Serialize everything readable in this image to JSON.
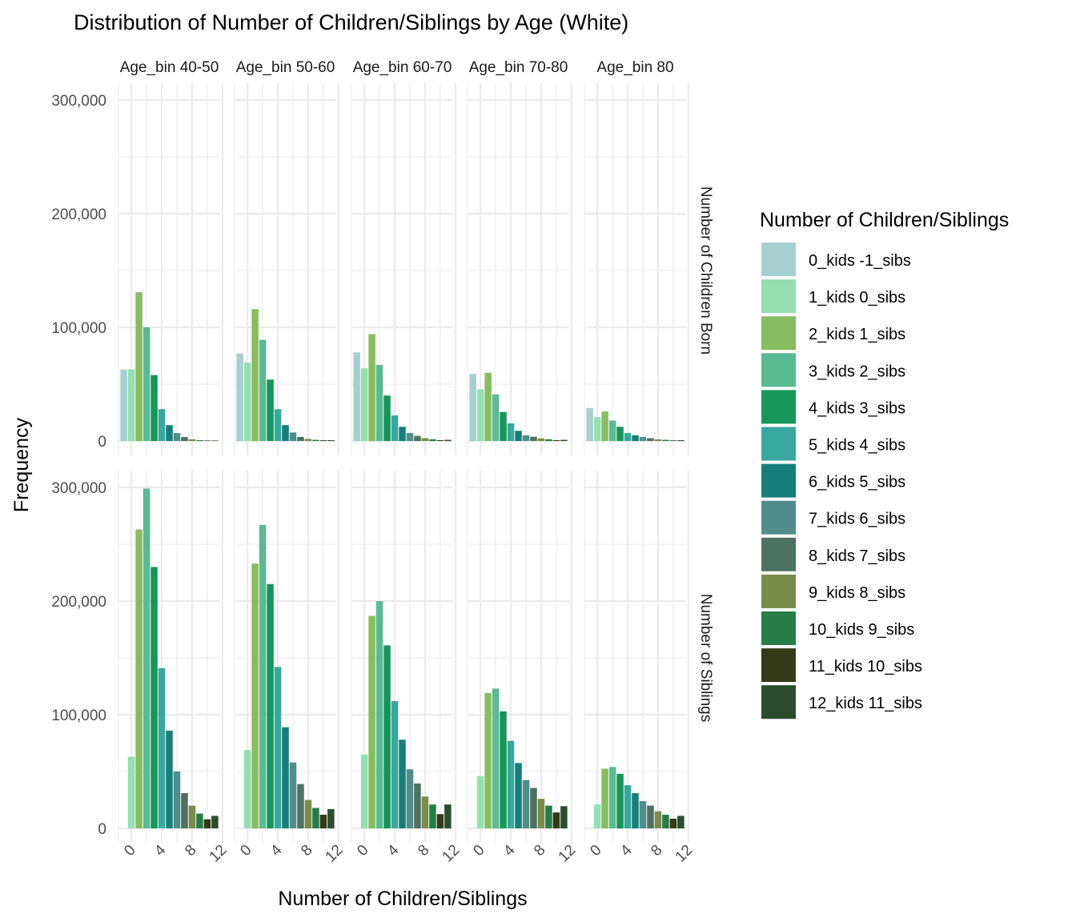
{
  "chart_data": {
    "type": "bar",
    "title": "Distribution of Number of Children/Siblings by Age (White)",
    "xlabel": "Number of Children/Siblings",
    "ylabel": "Frequency",
    "ylim": [
      0,
      300000
    ],
    "yticks": [
      0,
      100000,
      200000,
      300000
    ],
    "ytick_labels": [
      "0",
      "100,000",
      "200,000",
      "300,000"
    ],
    "xlim": [
      -1,
      12
    ],
    "xticks": [
      0,
      4,
      8,
      12
    ],
    "xtick_labels": [
      "0",
      "4",
      "8",
      "12"
    ],
    "grid": true,
    "legend_position": "right",
    "facet_columns": [
      "Age_bin 40-50",
      "Age_bin 50-60",
      "Age_bin 60-70",
      "Age_bin 70-80",
      "Age_bin 80"
    ],
    "facet_column_strip_labels": [
      "‹ge_bin 40-5›",
      "‹ge_bin 50-6›",
      "‹ge_bin 60-7›",
      "‹ge_bin 70-8›",
      "Age_bin 80"
    ],
    "facet_rows": [
      "Number of Children Born",
      "Number of Siblings"
    ],
    "legend": {
      "title": "Number of Children/Siblings",
      "entries": [
        {
          "label": "0_kids -1_sibs",
          "color": "#a6d0cf"
        },
        {
          "label": "1_kids 0_sibs",
          "color": "#93dfb0"
        },
        {
          "label": "2_kids 1_sibs",
          "color": "#87bd60"
        },
        {
          "label": "3_kids 2_sibs",
          "color": "#59ba94"
        },
        {
          "label": "4_kids 3_sibs",
          "color": "#169659"
        },
        {
          "label": "5_kids 4_sibs",
          "color": "#38a89e"
        },
        {
          "label": "6_kids 5_sibs",
          "color": "#177f7b"
        },
        {
          "label": "7_kids 6_sibs",
          "color": "#508d8b"
        },
        {
          "label": "8_kids 7_sibs",
          "color": "#4e7261"
        },
        {
          "label": "9_kids 8_sibs",
          "color": "#7a8b4a"
        },
        {
          "label": "10_kids 9_sibs",
          "color": "#267d48"
        },
        {
          "label": "11_kids 10_sibs",
          "color": "#343a18"
        },
        {
          "label": "12_kids 11_sibs",
          "color": "#2b4d2e"
        }
      ]
    },
    "categories_x": [
      -1,
      0,
      1,
      2,
      3,
      4,
      5,
      6,
      7,
      8,
      9,
      10,
      11
    ],
    "panels": [
      {
        "row": "Number of Children Born",
        "col": "Age_bin 40-50",
        "values": [
          63000,
          63000,
          131000,
          100000,
          58000,
          28000,
          14000,
          7000,
          3500,
          1500,
          700,
          400,
          400
        ]
      },
      {
        "row": "Number of Children Born",
        "col": "Age_bin 50-60",
        "values": [
          77000,
          69000,
          116000,
          89000,
          54000,
          28000,
          14000,
          7500,
          3500,
          1800,
          1000,
          600,
          700
        ]
      },
      {
        "row": "Number of Children Born",
        "col": "Age_bin 60-70",
        "values": [
          78000,
          64000,
          94000,
          67000,
          40000,
          22500,
          12500,
          7000,
          4500,
          2500,
          1500,
          700,
          1000
        ]
      },
      {
        "row": "Number of Children Born",
        "col": "Age_bin 70-80",
        "values": [
          59000,
          45500,
          60000,
          41000,
          25500,
          15500,
          9000,
          5000,
          3700,
          2300,
          1500,
          700,
          1000
        ]
      },
      {
        "row": "Number of Children Born",
        "col": "Age_bin 80",
        "values": [
          29000,
          21000,
          26000,
          18000,
          12500,
          7000,
          5000,
          3500,
          2500,
          1500,
          1000,
          500,
          700
        ]
      },
      {
        "row": "Number of Siblings",
        "col": "Age_bin 40-50",
        "values": [
          0,
          63000,
          263000,
          299000,
          230000,
          141000,
          86000,
          50000,
          31000,
          20000,
          13000,
          8000,
          11000
        ]
      },
      {
        "row": "Number of Siblings",
        "col": "Age_bin 50-60",
        "values": [
          0,
          69000,
          233000,
          267000,
          215000,
          142000,
          89000,
          58000,
          39000,
          25000,
          18000,
          12000,
          17000
        ]
      },
      {
        "row": "Number of Siblings",
        "col": "Age_bin 60-70",
        "values": [
          0,
          65000,
          187000,
          200000,
          161000,
          112000,
          78000,
          52000,
          39500,
          28000,
          21000,
          12500,
          21000
        ]
      },
      {
        "row": "Number of Siblings",
        "col": "Age_bin 70-80",
        "values": [
          0,
          46000,
          119000,
          123000,
          103000,
          77000,
          57500,
          42500,
          35500,
          26000,
          20000,
          14000,
          19500
        ]
      },
      {
        "row": "Number of Siblings",
        "col": "Age_bin 80",
        "values": [
          0,
          21000,
          52500,
          54000,
          48000,
          38000,
          31000,
          24000,
          20000,
          15000,
          12000,
          8500,
          11000
        ]
      }
    ]
  }
}
